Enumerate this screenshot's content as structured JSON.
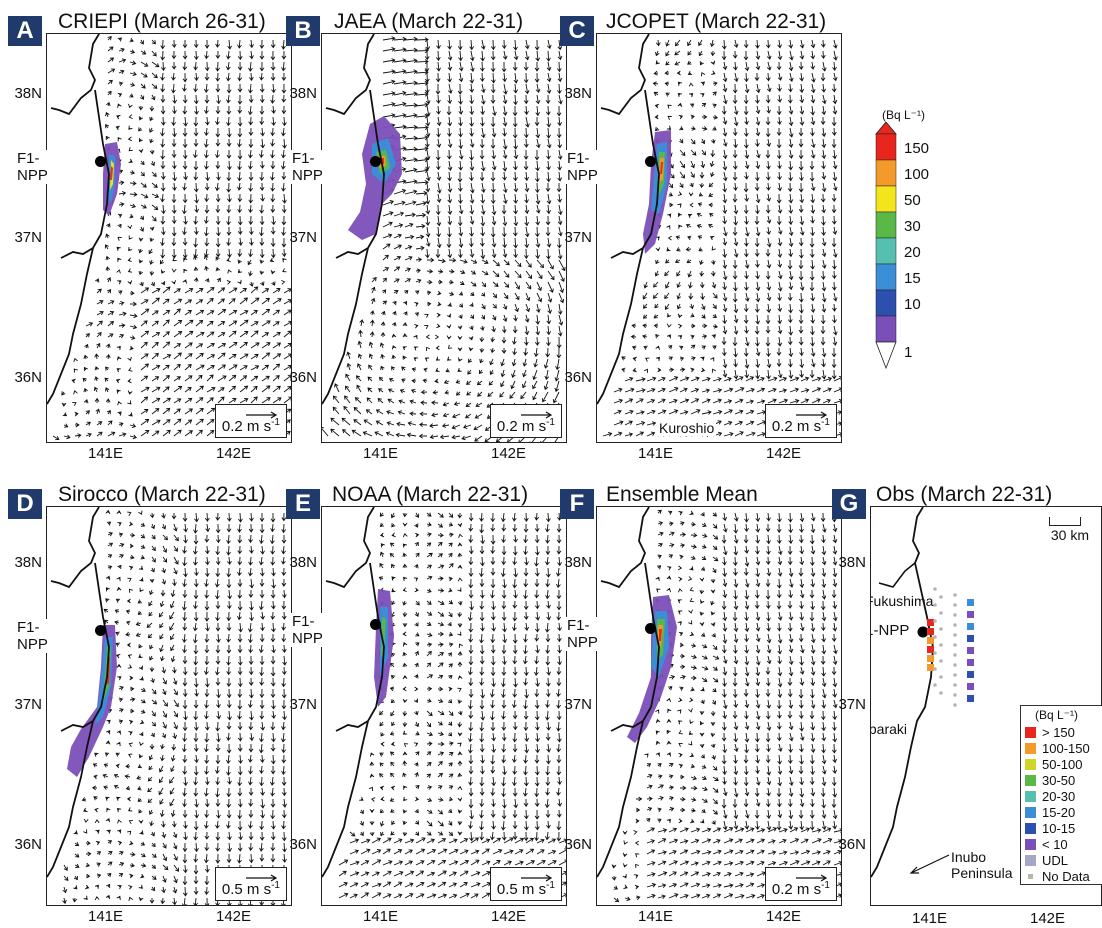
{
  "panels": [
    {
      "id": "A",
      "letter": "A",
      "title": "CRIEPI (March 26-31)",
      "scale": "0.2 m s",
      "flow": "criepi",
      "plume": "A"
    },
    {
      "id": "B",
      "letter": "B",
      "title": "JAEA (March 22-31)",
      "scale": "0.2 m s",
      "flow": "jaea",
      "plume": "B"
    },
    {
      "id": "C",
      "letter": "C",
      "title": "JCOPET (March 22-31)",
      "scale": "0.2 m s",
      "flow": "jcopet",
      "plume": "C",
      "extra_label": "Kuroshio"
    },
    {
      "id": "D",
      "letter": "D",
      "title": "Sirocco (March 22-31)",
      "scale": "0.5 m s",
      "flow": "sirocco",
      "plume": "D"
    },
    {
      "id": "E",
      "letter": "E",
      "title": "NOAA (March 22-31)",
      "scale": "0.5 m s",
      "flow": "noaa",
      "plume": "E"
    },
    {
      "id": "F",
      "letter": "F",
      "title": "Ensemble Mean",
      "scale": "0.2 m s",
      "flow": "ensemble",
      "plume": "F"
    }
  ],
  "obs_panel": {
    "letter": "G",
    "title": "Obs (March 22-31)",
    "scale_km": "30 km",
    "places": {
      "fukushima": "Fukushima",
      "ibaraki": "Ibaraki",
      "inubo_1": "Inubo",
      "inubo_2": "Peninsula"
    },
    "legend_unit": "(Bq L⁻¹)",
    "legend": [
      {
        "label": "> 150",
        "color": "#e8261e"
      },
      {
        "label": "100-150",
        "color": "#f39a2a"
      },
      {
        "label": "50-100",
        "color": "#cfd62a"
      },
      {
        "label": "30-50",
        "color": "#5ab847"
      },
      {
        "label": "20-30",
        "color": "#56c0b0"
      },
      {
        "label": "15-20",
        "color": "#3a8fd6"
      },
      {
        "label": "10-15",
        "color": "#2d4fae"
      },
      {
        "label": "< 10",
        "color": "#7b4fb8"
      },
      {
        "label": "UDL",
        "color": "#a8a6c8"
      },
      {
        "label": "No Data",
        "color": "#b5b5b5"
      }
    ]
  },
  "labels": {
    "site": "F1-NPP",
    "lat_38": "38N",
    "lat_37": "37N",
    "lat_36": "36N",
    "lon_141": "141E",
    "lon_142": "142E",
    "scale_exp": "-1"
  },
  "colorbar": {
    "unit": "(Bq L⁻¹)",
    "ticks": [
      "150",
      "100",
      "50",
      "30",
      "20",
      "15",
      "10",
      "1"
    ],
    "colors": [
      "#e8261e",
      "#f39a2a",
      "#f2e51c",
      "#5ab847",
      "#56c0b0",
      "#3a8fd6",
      "#2d4fae",
      "#7b4fb8"
    ]
  }
}
